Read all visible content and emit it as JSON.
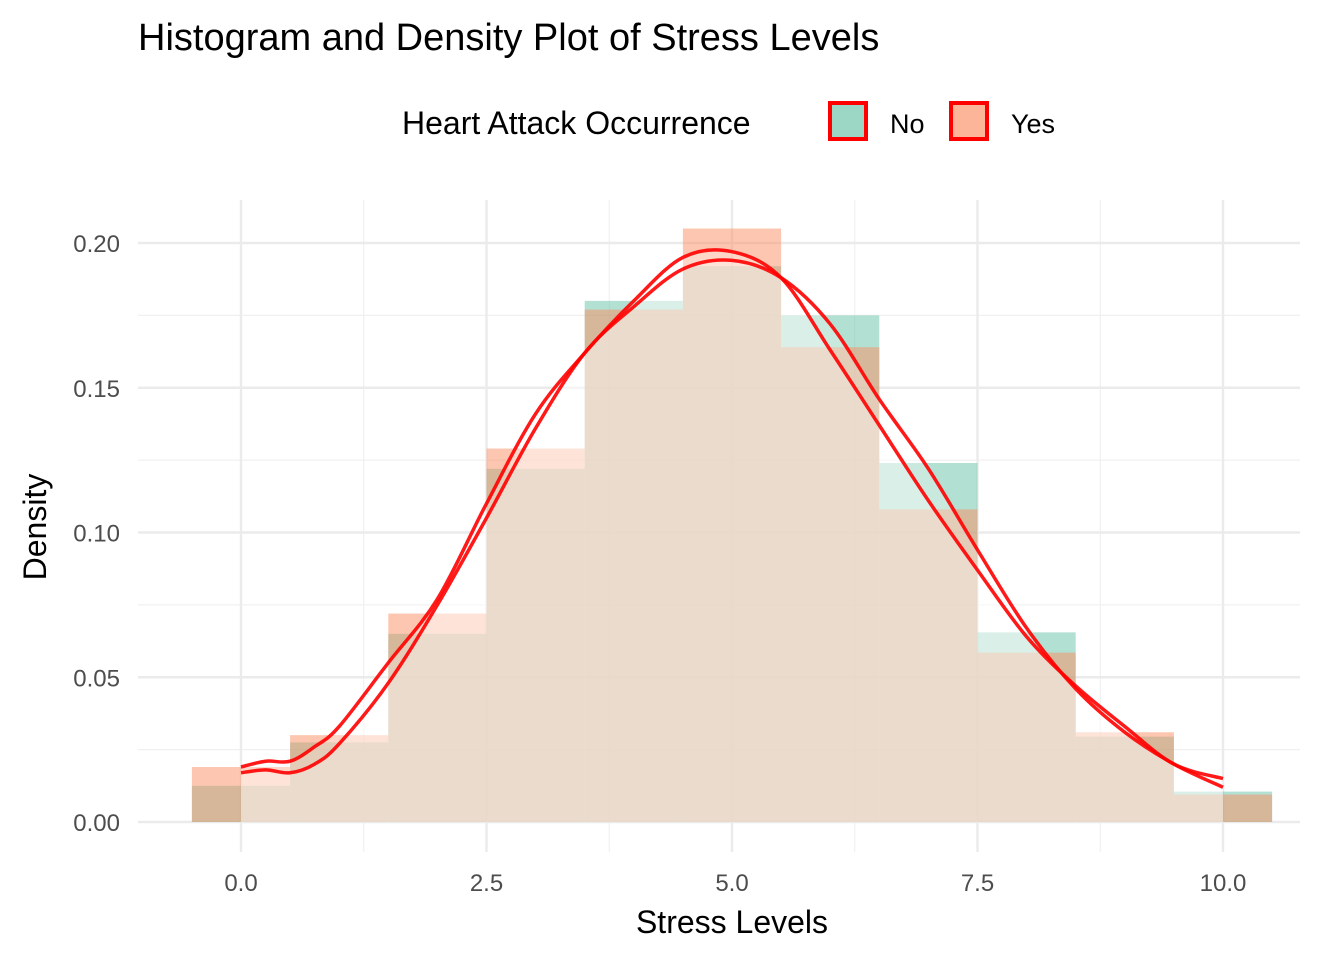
{
  "chart_data": {
    "type": "histogram+density",
    "title": "Histogram and Density Plot of Stress Levels",
    "xlabel": "Stress Levels",
    "ylabel": "Density",
    "xlim": [
      -0.5,
      10.5
    ],
    "ylim": [
      0,
      0.21
    ],
    "x_ticks": [
      "0.0",
      "2.5",
      "5.0",
      "7.5",
      "10.0"
    ],
    "y_ticks": [
      "0.00",
      "0.05",
      "0.10",
      "0.15",
      "0.20"
    ],
    "grid": true,
    "legend": {
      "title": "Heart Attack Occurrence",
      "position": "top",
      "entries": [
        "No",
        "Yes"
      ]
    },
    "bins": [
      0,
      1,
      2,
      3,
      4,
      5,
      6,
      7,
      8,
      9,
      10
    ],
    "bin_width": 1,
    "series": [
      {
        "name": "No",
        "color": "#66c2a5",
        "values": [
          0.0125,
          0.0275,
          0.065,
          0.122,
          0.18,
          0.192,
          0.175,
          0.124,
          0.0655,
          0.0295,
          0.0105
        ]
      },
      {
        "name": "Yes",
        "color": "#fc8d62",
        "values": [
          0.019,
          0.03,
          0.072,
          0.129,
          0.177,
          0.205,
          0.164,
          0.108,
          0.0585,
          0.031,
          0.0095
        ]
      }
    ],
    "density_curves": [
      {
        "name": "No",
        "color": "#ff0000",
        "x": [
          0,
          0.25,
          0.5,
          0.75,
          1,
          1.5,
          2,
          2.5,
          3,
          3.5,
          4,
          4.5,
          5,
          5.5,
          6,
          6.5,
          7,
          7.5,
          8,
          8.5,
          9,
          9.5,
          10
        ],
        "y": [
          0.017,
          0.018,
          0.017,
          0.02,
          0.027,
          0.048,
          0.075,
          0.105,
          0.136,
          0.162,
          0.178,
          0.191,
          0.194,
          0.188,
          0.172,
          0.146,
          0.122,
          0.094,
          0.067,
          0.046,
          0.031,
          0.02,
          0.012
        ]
      },
      {
        "name": "Yes",
        "color": "#ff0000",
        "x": [
          0,
          0.25,
          0.5,
          0.75,
          1,
          1.5,
          2,
          2.5,
          3,
          3.5,
          4,
          4.5,
          5,
          5.5,
          6,
          6.5,
          7,
          7.5,
          8,
          8.5,
          9,
          9.5,
          10
        ],
        "y": [
          0.019,
          0.021,
          0.021,
          0.026,
          0.033,
          0.055,
          0.077,
          0.11,
          0.141,
          0.162,
          0.18,
          0.195,
          0.197,
          0.188,
          0.163,
          0.137,
          0.111,
          0.087,
          0.064,
          0.047,
          0.033,
          0.02,
          0.015
        ]
      }
    ]
  }
}
